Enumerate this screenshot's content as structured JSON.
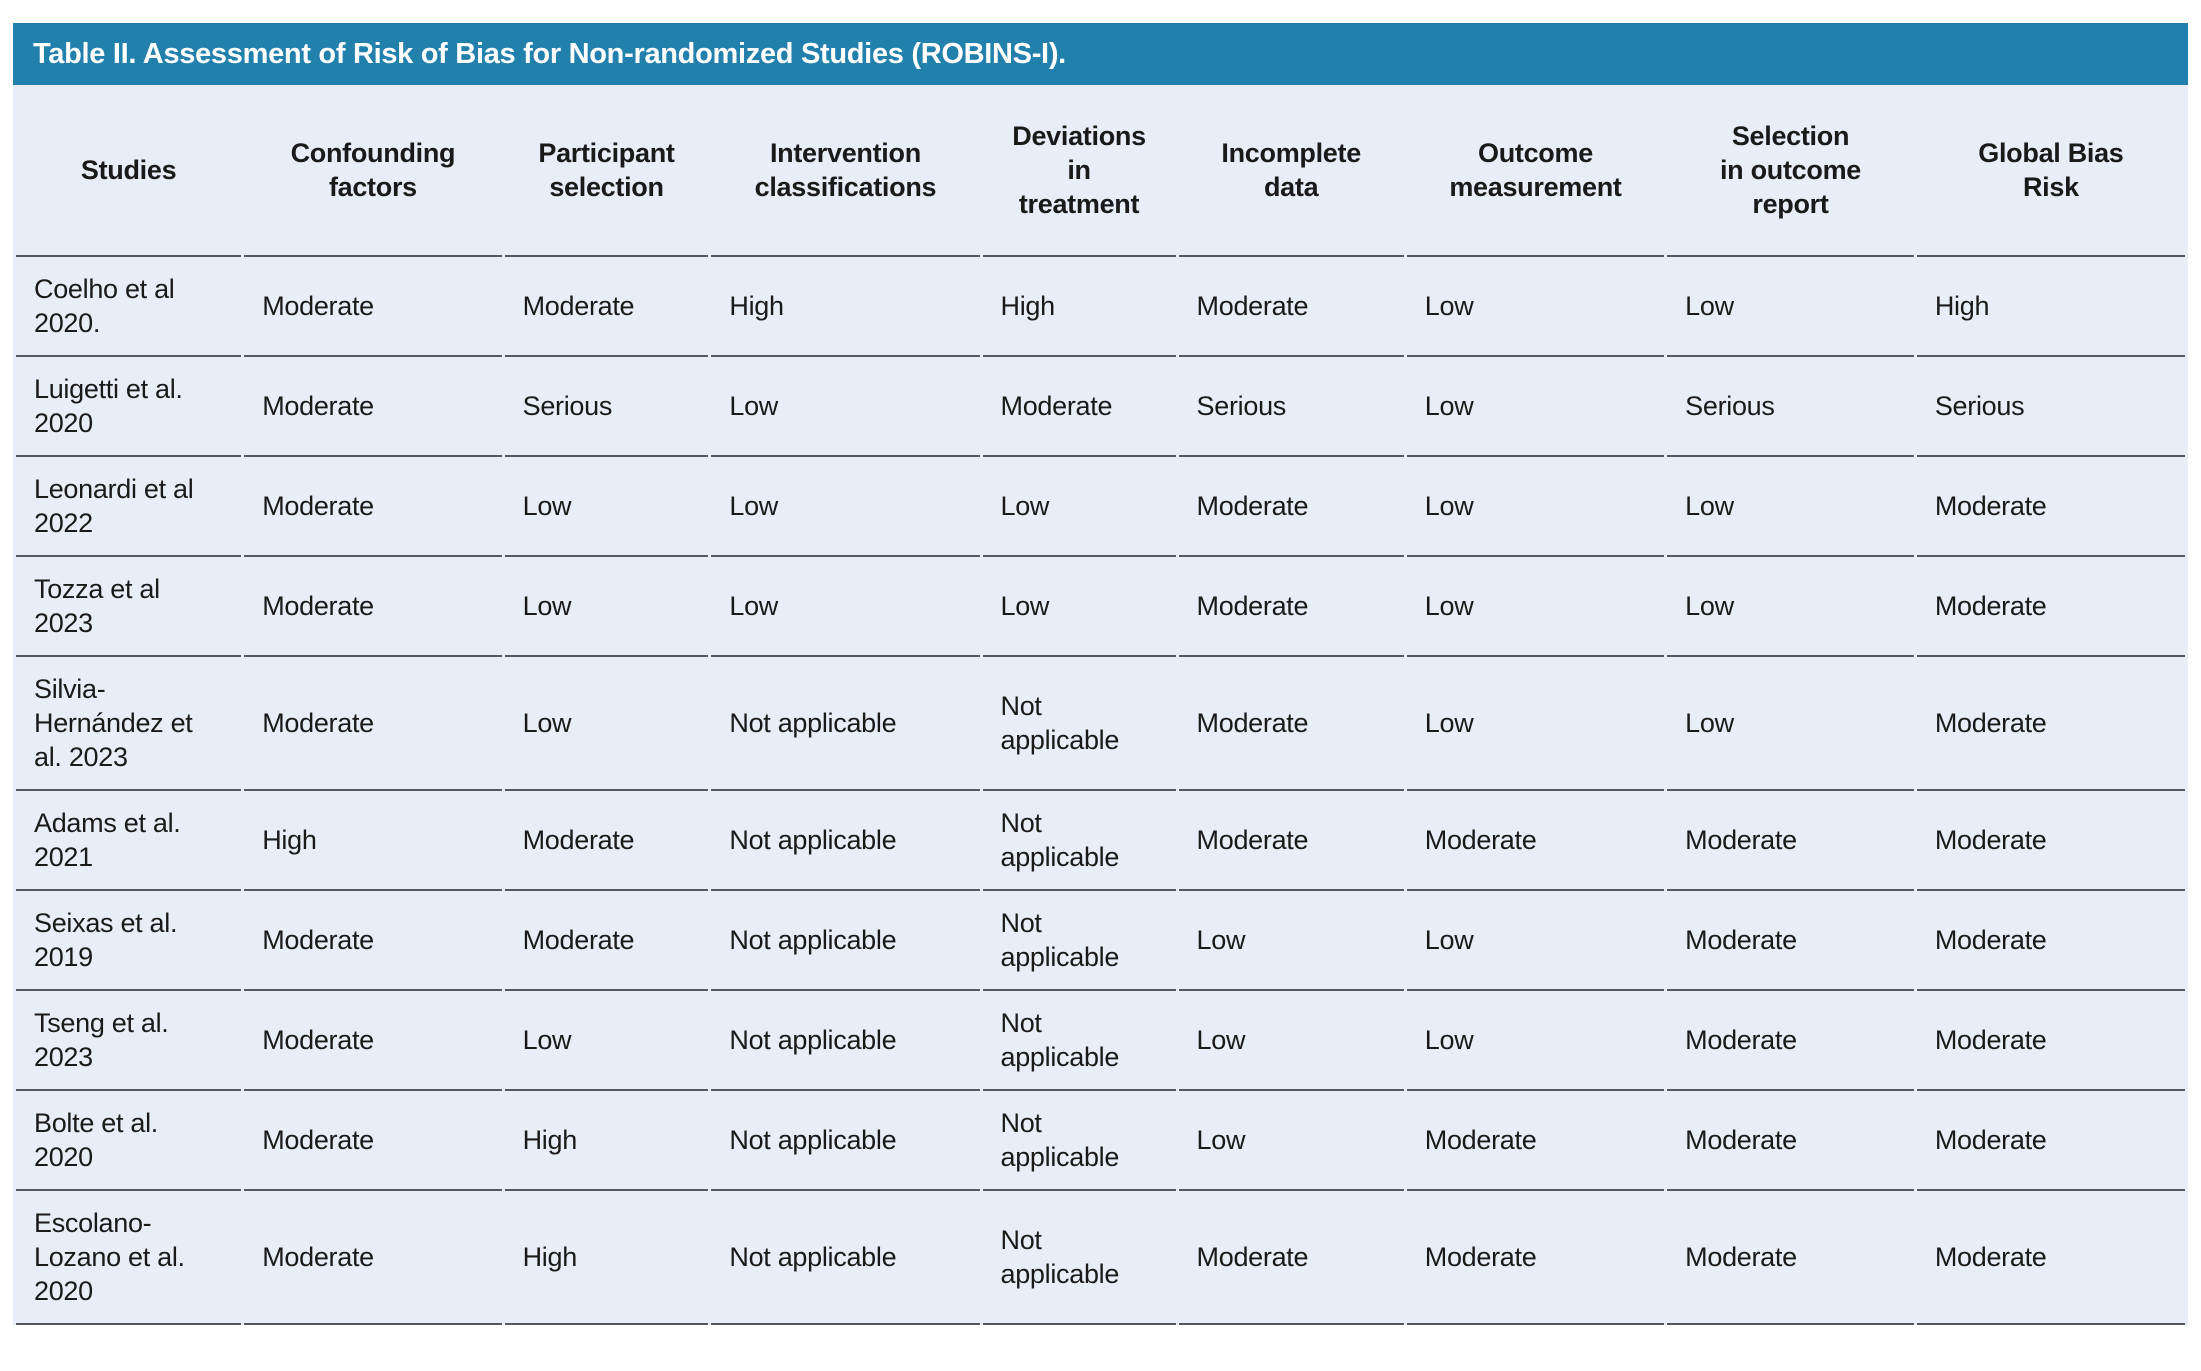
{
  "table": {
    "title": "Table II. Assessment of Risk of Bias for Non-randomized Studies (ROBINS-I).",
    "columns": [
      "Studies",
      "Confounding\nfactors",
      "Participant\nselection",
      "Intervention\nclassifications",
      "Deviations\nin\ntreatment",
      "Incomplete\ndata",
      "Outcome\nmeasurement",
      "Selection\nin outcome\nreport",
      "Global Bias\nRisk"
    ],
    "rows": [
      {
        "study": "Coelho et al 2020.",
        "values": [
          "Moderate",
          "Moderate",
          "High",
          "High",
          "Moderate",
          "Low",
          "Low",
          "High"
        ]
      },
      {
        "study": "Luigetti et al. 2020",
        "values": [
          "Moderate",
          "Serious",
          "Low",
          "Moderate",
          "Serious",
          "Low",
          "Serious",
          "Serious"
        ]
      },
      {
        "study": "Leonardi et al 2022",
        "values": [
          "Moderate",
          "Low",
          "Low",
          "Low",
          "Moderate",
          "Low",
          "Low",
          "Moderate"
        ]
      },
      {
        "study": "Tozza et al 2023",
        "values": [
          "Moderate",
          "Low",
          "Low",
          "Low",
          "Moderate",
          "Low",
          "Low",
          "Moderate"
        ]
      },
      {
        "study": "Silvia-Hernández et al. 2023",
        "values": [
          "Moderate",
          "Low",
          "Not applicable",
          "Not applicable",
          "Moderate",
          "Low",
          "Low",
          "Moderate"
        ]
      },
      {
        "study": "Adams et al. 2021",
        "values": [
          "High",
          "Moderate",
          "Not applicable",
          "Not applicable",
          "Moderate",
          "Moderate",
          "Moderate",
          "Moderate"
        ]
      },
      {
        "study": "Seixas et al. 2019",
        "values": [
          "Moderate",
          "Moderate",
          "Not applicable",
          "Not applicable",
          "Low",
          "Low",
          "Moderate",
          "Moderate"
        ]
      },
      {
        "study": "Tseng et al. 2023",
        "values": [
          "Moderate",
          "Low",
          "Not applicable",
          "Not applicable",
          "Low",
          "Low",
          "Moderate",
          "Moderate"
        ]
      },
      {
        "study": "Bolte et al. 2020",
        "values": [
          "Moderate",
          "High",
          "Not applicable",
          "Not applicable",
          "Low",
          "Moderate",
          "Moderate",
          "Moderate"
        ]
      },
      {
        "study": "Escolano-Lozano et al. 2020",
        "values": [
          "Moderate",
          "High",
          "Not applicable",
          "Not applicable",
          "Moderate",
          "Moderate",
          "Moderate",
          "Moderate"
        ]
      }
    ],
    "colors": {
      "title_bar": "#2280ad",
      "title_text": "#ffffff",
      "body_background": "#e9edf7",
      "divider": "#55595f",
      "text": "#1a1a1a"
    }
  }
}
